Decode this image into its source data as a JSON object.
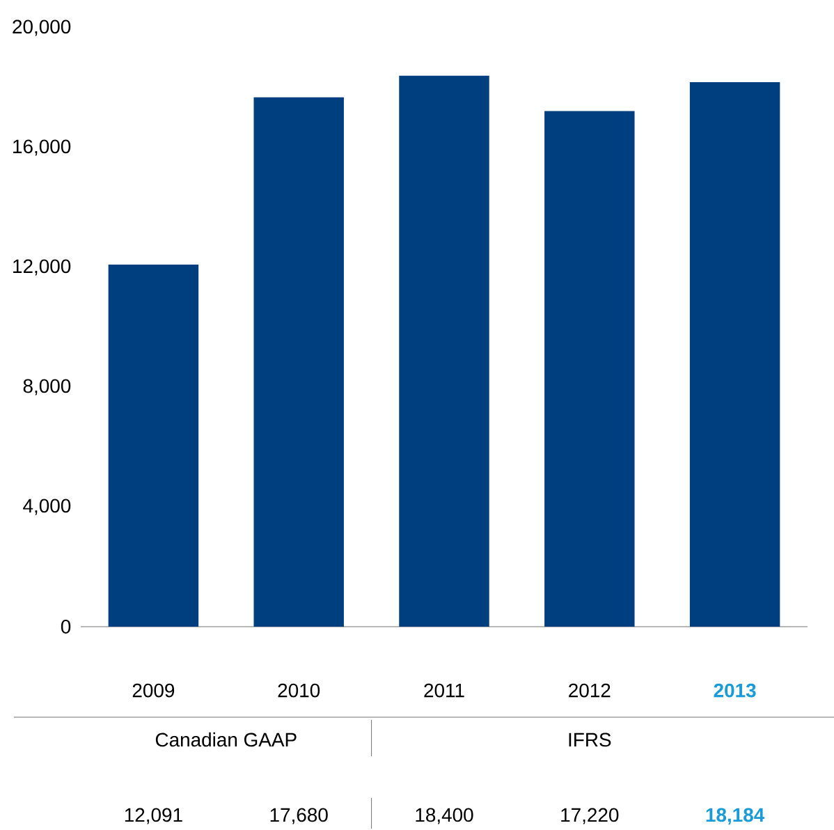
{
  "chart_data": {
    "type": "bar",
    "categories": [
      "2009",
      "2010",
      "2011",
      "2012",
      "2013"
    ],
    "values": [
      12091,
      17680,
      18400,
      17220,
      18184
    ],
    "color": "#003f7f",
    "ylim": [
      0,
      20000
    ],
    "yticks": [
      {
        "value": 0,
        "label": "0"
      },
      {
        "value": 4000,
        "label": "4,000"
      },
      {
        "value": 8000,
        "label": "8,000"
      },
      {
        "value": 12000,
        "label": "12,000"
      },
      {
        "value": 16000,
        "label": "16,000"
      },
      {
        "value": 20000,
        "label": "20,000"
      }
    ],
    "data_labels": true,
    "value_labels": [
      "12,091",
      "17,680",
      "18,400",
      "17,220",
      "18,184"
    ],
    "annotations": [
      "Canadian GAAP",
      "IFRS"
    ],
    "grid": false
  }
}
